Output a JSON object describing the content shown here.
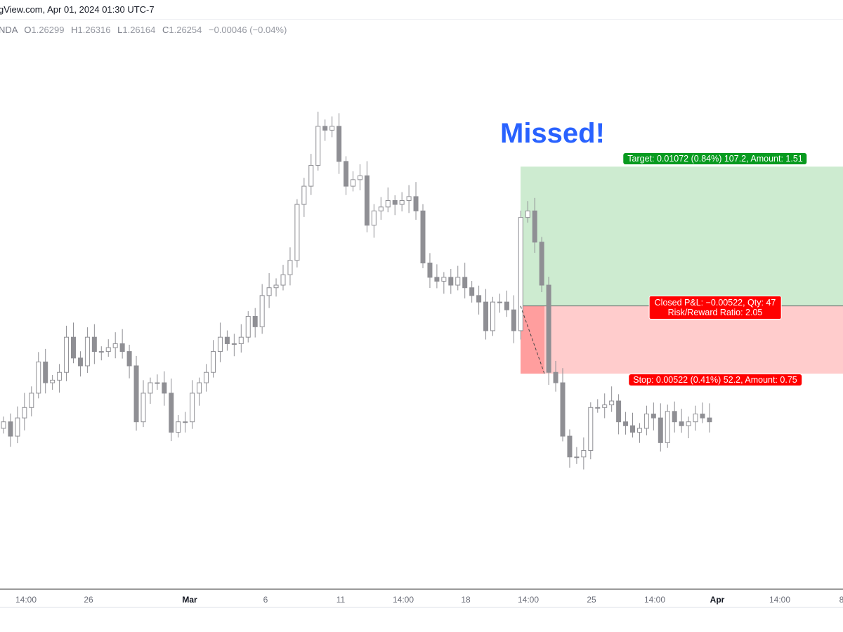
{
  "header": {
    "source_line": "gView.com, Apr 01, 2024 01:30 UTC-7",
    "symbol_suffix": "NDA",
    "ohlc": {
      "o_label": "O",
      "o": "1.26299",
      "h_label": "H",
      "h": "1.26316",
      "l_label": "L",
      "l": "1.26164",
      "c_label": "C",
      "c": "1.26254",
      "change": "−0.00046 (−0.04%)"
    }
  },
  "annotation": {
    "text": "Missed!",
    "color": "#2962ff"
  },
  "position": {
    "target_label": "Target: 0.01072 (0.84%) 107.2, Amount: 1.51",
    "pnl_line1": "Closed P&L: −0.00522, Qty: 47",
    "pnl_line2": "Risk/Reward Ratio: 2.05",
    "stop_label": "Stop: 0.00522 (0.41%) 52.2, Amount: 0.75",
    "entry_price": 1.2714,
    "target_price": 1.2821,
    "stop_price": 1.2662,
    "colors": {
      "profit_zone": "#cdebd0",
      "loss_zone": "#ffcccc",
      "loss_realized": "#ff9e9e",
      "target_label": "#089a1f",
      "stop_label": "#ff0000"
    }
  },
  "chart_data": {
    "type": "candlestick",
    "ylim": [
      1.2497,
      1.2949
    ],
    "grid": false,
    "colors": {
      "up_fill": "#ffffff",
      "down_fill": "#8f8f94",
      "border": "#8f8f94"
    },
    "x_ticks": [
      {
        "label": "14:00",
        "bold": false
      },
      {
        "label": "26",
        "bold": false
      },
      {
        "label": "Mar",
        "bold": true
      },
      {
        "label": "6",
        "bold": false
      },
      {
        "label": "11",
        "bold": false
      },
      {
        "label": "14:00",
        "bold": false
      },
      {
        "label": "18",
        "bold": false
      },
      {
        "label": "14:00",
        "bold": false
      },
      {
        "label": "25",
        "bold": false
      },
      {
        "label": "14:00",
        "bold": false
      },
      {
        "label": "Apr",
        "bold": true
      },
      {
        "label": "14:00",
        "bold": false
      },
      {
        "label": "8",
        "bold": false
      }
    ],
    "first_open": 1.262,
    "closes": [
      1.2625,
      1.2614,
      1.2628,
      1.2636,
      1.2647,
      1.2671,
      1.2655,
      1.2657,
      1.2663,
      1.269,
      1.2674,
      1.2668,
      1.269,
      1.2679,
      1.2679,
      1.2682,
      1.2685,
      1.2679,
      1.2668,
      1.2625,
      1.2647,
      1.2655,
      1.2655,
      1.2647,
      1.2617,
      1.2625,
      1.2625,
      1.2647,
      1.2655,
      1.2663,
      1.2679,
      1.269,
      1.2685,
      1.2685,
      1.269,
      1.2706,
      1.2698,
      1.2722,
      1.2728,
      1.273,
      1.2738,
      1.2749,
      1.2792,
      1.2806,
      1.2822,
      1.2852,
      1.2849,
      1.2852,
      1.2825,
      1.2806,
      1.2811,
      1.2814,
      1.2776,
      1.2787,
      1.279,
      1.2795,
      1.2792,
      1.2795,
      1.2798,
      1.2787,
      1.2747,
      1.2736,
      1.2733,
      1.2736,
      1.273,
      1.2736,
      1.2728,
      1.2722,
      1.2717,
      1.2695,
      1.2717,
      1.2717,
      1.2711,
      1.2695,
      1.2782,
      1.2787,
      1.2763,
      1.273,
      1.2663,
      1.2655,
      1.2614,
      1.2598,
      1.2598,
      1.2603,
      1.2636,
      1.2636,
      1.2638,
      1.2641,
      1.2625,
      1.2622,
      1.2617,
      1.262,
      1.2631,
      1.2628,
      1.2609,
      1.2633,
      1.2625,
      1.2622,
      1.2625,
      1.2631,
      1.2628,
      1.2625
    ]
  }
}
